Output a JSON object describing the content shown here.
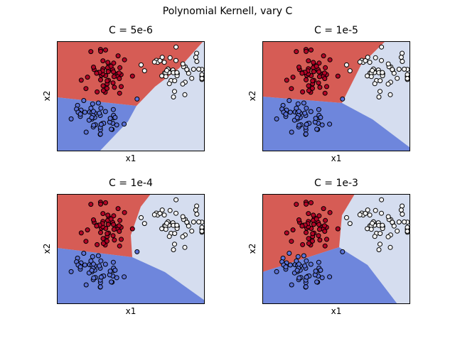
{
  "figure": {
    "suptitle": "Polynomial Kernell, vary C"
  },
  "colors": {
    "region_red": "#d65c55",
    "region_blue": "#6e86dc",
    "region_light": "#d5ddef",
    "point_red": "#b40426",
    "point_blue": "#5b72d9",
    "point_white": "#f4f4f4",
    "edge": "#000000"
  },
  "chart_data": [
    {
      "type": "scatter",
      "title": "C = 5e-6",
      "xlabel": "x1",
      "ylabel": "x2",
      "ticks_visible": false
    },
    {
      "type": "scatter",
      "title": "C = 1e-5",
      "xlabel": "x1",
      "ylabel": "x2",
      "ticks_visible": false
    },
    {
      "type": "scatter",
      "title": "C = 1e-4",
      "xlabel": "x1",
      "ylabel": "x2",
      "ticks_visible": false
    },
    {
      "type": "scatter",
      "title": "C = 1e-3",
      "xlabel": "x1",
      "ylabel": "x2",
      "ticks_visible": false
    }
  ]
}
